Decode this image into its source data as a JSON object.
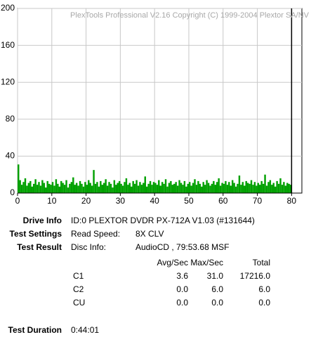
{
  "chart_data": {
    "type": "bar",
    "watermark": "PlexTools Professional V2.16 Copyright (C) 1999-2004 Plextor SA/NV",
    "x": [
      0,
      0.5,
      1,
      1.5,
      2,
      2.5,
      3,
      3.5,
      4,
      4.5,
      5,
      5.5,
      6,
      6.5,
      7,
      7.5,
      8,
      8.5,
      9,
      9.5,
      10,
      10.5,
      11,
      11.5,
      12,
      12.5,
      13,
      13.5,
      14,
      14.5,
      15,
      15.5,
      16,
      16.5,
      17,
      17.5,
      18,
      18.5,
      19,
      19.5,
      20,
      20.5,
      21,
      21.5,
      22,
      22.5,
      23,
      23.5,
      24,
      24.5,
      25,
      25.5,
      26,
      26.5,
      27,
      27.5,
      28,
      28.5,
      29,
      29.5,
      30,
      30.5,
      31,
      31.5,
      32,
      32.5,
      33,
      33.5,
      34,
      34.5,
      35,
      35.5,
      36,
      36.5,
      37,
      37.5,
      38,
      38.5,
      39,
      39.5,
      40,
      40.5,
      41,
      41.5,
      42,
      42.5,
      43,
      43.5,
      44,
      44.5,
      45,
      45.5,
      46,
      46.5,
      47,
      47.5,
      48,
      48.5,
      49,
      49.5,
      50,
      50.5,
      51,
      51.5,
      52,
      52.5,
      53,
      53.5,
      54,
      54.5,
      55,
      55.5,
      56,
      56.5,
      57,
      57.5,
      58,
      58.5,
      59,
      59.5,
      60,
      60.5,
      61,
      61.5,
      62,
      62.5,
      63,
      63.5,
      64,
      64.5,
      65,
      65.5,
      66,
      66.5,
      67,
      67.5,
      68,
      68.5,
      69,
      69.5,
      70,
      70.5,
      71,
      71.5,
      72,
      72.5,
      73,
      73.5,
      74,
      74.5,
      75,
      75.5,
      76,
      76.5,
      77,
      77.5,
      78,
      78.5,
      79,
      79.5
    ],
    "values": [
      31,
      14,
      9,
      12,
      16,
      8,
      11,
      13,
      7,
      10,
      15,
      9,
      12,
      8,
      14,
      11,
      6,
      13,
      10,
      9,
      12,
      8,
      15,
      10,
      7,
      13,
      11,
      9,
      14,
      6,
      10,
      12,
      17,
      9,
      11,
      8,
      13,
      10,
      7,
      12,
      9,
      14,
      11,
      8,
      25,
      10,
      12,
      7,
      13,
      9,
      11,
      15,
      8,
      12,
      10,
      6,
      14,
      9,
      11,
      13,
      10,
      8,
      12,
      16,
      9,
      11,
      7,
      13,
      10,
      14,
      8,
      12,
      9,
      11,
      18,
      7,
      10,
      13,
      9,
      12,
      11,
      9,
      14,
      8,
      12,
      10,
      15,
      7,
      11,
      13,
      9,
      10,
      12,
      8,
      14,
      11,
      9,
      13,
      7,
      10,
      12,
      8,
      11,
      15,
      9,
      13,
      10,
      7,
      12,
      9,
      14,
      11,
      8,
      10,
      13,
      9,
      12,
      16,
      8,
      11,
      10,
      13,
      9,
      12,
      8,
      14,
      11,
      7,
      10,
      19,
      9,
      12,
      8,
      13,
      11,
      10,
      14,
      9,
      12,
      8,
      11,
      9,
      13,
      10,
      20,
      8,
      12,
      14,
      9,
      11,
      7,
      13,
      10,
      16,
      9,
      12,
      8,
      11,
      10,
      9
    ],
    "color": "#00a000",
    "end_line": 80,
    "xlim": [
      0,
      83
    ],
    "xticks": [
      0,
      10,
      20,
      30,
      40,
      50,
      60,
      70,
      80
    ],
    "ylim": [
      0,
      200
    ],
    "yticks": [
      0,
      40,
      80,
      120,
      160,
      200
    ],
    "grid": true
  },
  "info": {
    "drive": {
      "label": "Drive Info",
      "value": "ID:0 PLEXTOR DVDR PX-712A V1.03 (#131644)"
    },
    "settings": {
      "label": "Test Settings",
      "key": "Read Speed:",
      "value": "8X CLV"
    },
    "result": {
      "label": "Test Result",
      "key": "Disc Info:",
      "value": "AudioCD , 79:53.68 MSF"
    },
    "table": {
      "header": [
        "Avg/Sec",
        "Max/Sec",
        "Total"
      ],
      "rows": [
        [
          "C1",
          "3.6",
          "31.0",
          "17216.0"
        ],
        [
          "C2",
          "0.0",
          "6.0",
          "6.0"
        ],
        [
          "CU",
          "0.0",
          "0.0",
          "0.0"
        ]
      ]
    },
    "duration": {
      "label": "Test Duration",
      "value": "0:44:01"
    }
  }
}
